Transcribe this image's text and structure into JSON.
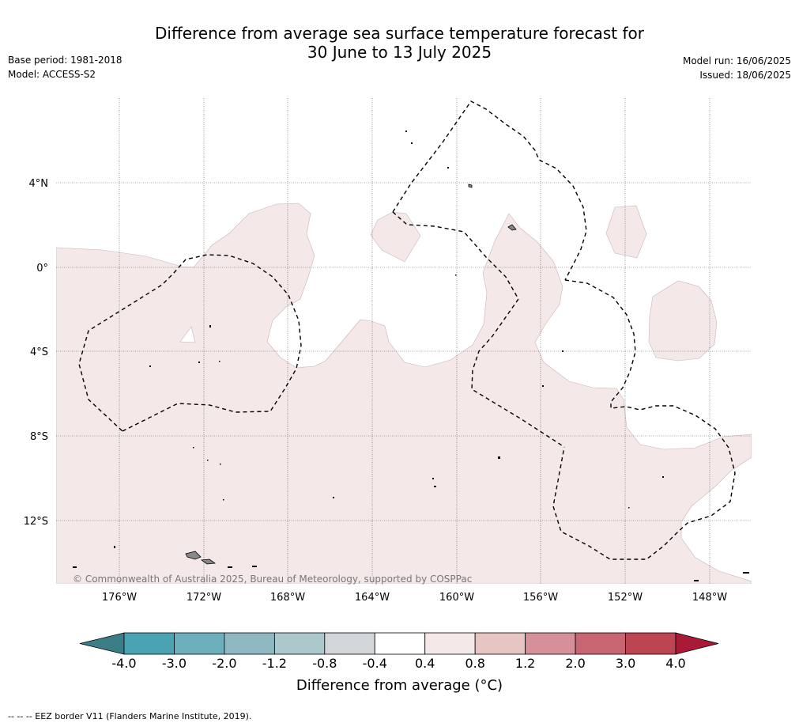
{
  "title": {
    "line1": "Difference from average sea surface temperature forecast for",
    "line2": "30 June to 13 July 2025"
  },
  "meta": {
    "base_period": "Base period: 1981-2018",
    "model": "Model: ACCESS-S2",
    "model_run": "Model run: 16/06/2025",
    "issued": "Issued: 18/06/2025"
  },
  "map": {
    "lat_labels": [
      "4°N",
      "0°",
      "4°S",
      "8°S",
      "12°S"
    ],
    "lon_labels": [
      "176°W",
      "172°W",
      "168°W",
      "164°W",
      "160°W",
      "156°W",
      "152°W",
      "148°W"
    ],
    "copyright": "© Commonwealth of Australia 2025, Bureau of Meteorology, supported by COSPPac",
    "colors": {
      "anomaly_fill": "#f4e8e8",
      "land": "#888888",
      "gridline": "#555555"
    }
  },
  "colorbar": {
    "ticks": [
      "-4.0",
      "-3.0",
      "-2.0",
      "-1.2",
      "-0.8",
      "-0.4",
      "0.4",
      "0.8",
      "1.2",
      "2.0",
      "3.0",
      "4.0"
    ],
    "colors": [
      "#3a7f88",
      "#4aa3b3",
      "#6eafbd",
      "#8fb8c3",
      "#abc8cd",
      "#d3d6d8",
      "#ffffff",
      "#f4e8e8",
      "#e6c5c2",
      "#d6909a",
      "#c96572",
      "#bd4451",
      "#a81a36"
    ],
    "label": "Difference from average (°C)"
  },
  "footer": "-- -- -- EEZ border V11 (Flanders Marine Institute, 2019)."
}
